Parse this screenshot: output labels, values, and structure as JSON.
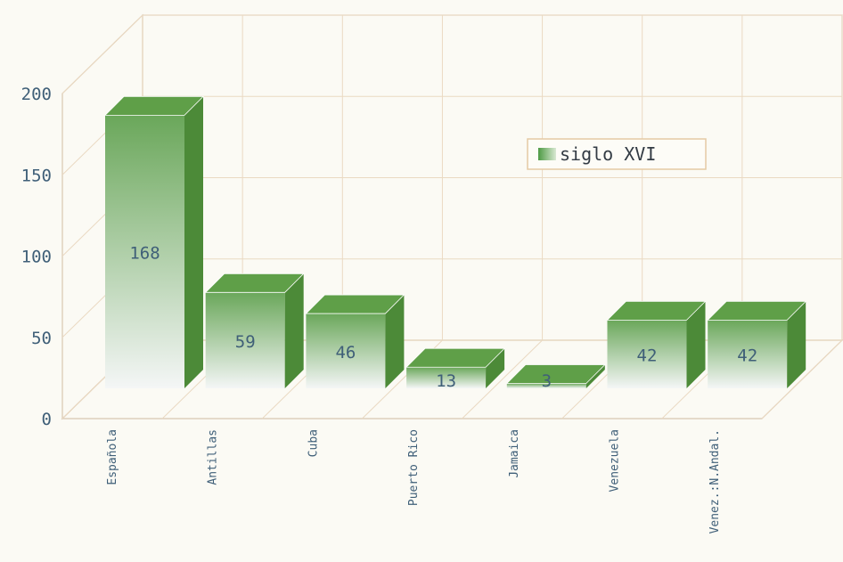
{
  "chart_data": {
    "type": "bar",
    "style": "3d",
    "categories": [
      "Española",
      "Antillas",
      "Cuba",
      "Puerto Rico",
      "Jamaica",
      "Venezuela",
      "Venez.:N.Andal."
    ],
    "series": [
      {
        "name": "siglo XVI",
        "values": [
          168,
          59,
          46,
          13,
          3,
          42,
          42
        ]
      }
    ],
    "data_labels": [
      "168",
      "59",
      "46",
      "13",
      "3",
      "42",
      "42"
    ],
    "yticks": [
      "0",
      "50",
      "100",
      "150",
      "200"
    ],
    "ylim": [
      0,
      200
    ],
    "grid": true,
    "legend": "top-right",
    "colors": {
      "bar_top": "#5f9f48",
      "bar_side": "#4c8a38",
      "bar_front_top": "#6aa75a",
      "bar_front_bottom": "#f4f6f6",
      "grid": "#ead9c2",
      "axis": "#d8c7b0",
      "background": "#fbfaf4"
    }
  }
}
